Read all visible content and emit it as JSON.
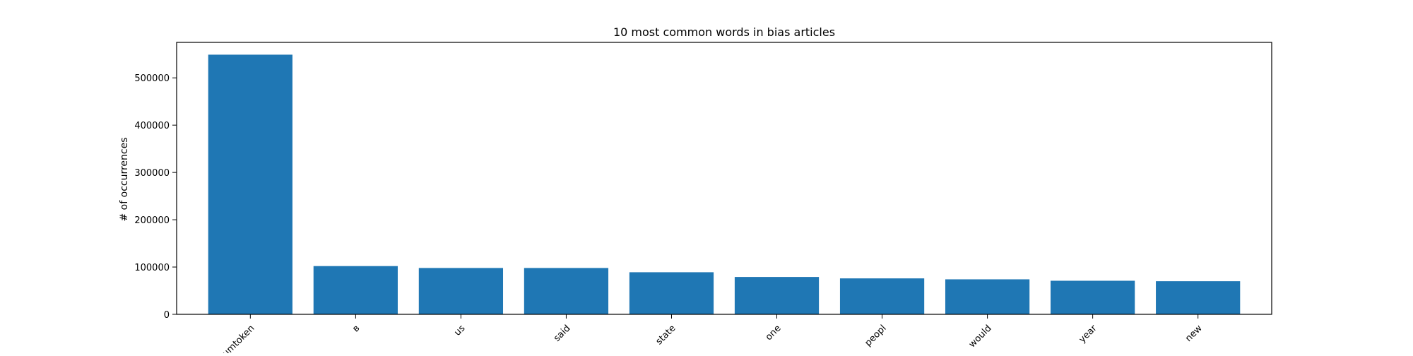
{
  "chart_data": {
    "type": "bar",
    "title": "10 most common words in bias articles",
    "xlabel": "",
    "ylabel": "# of occurrences",
    "categories": [
      "numtoken",
      "в",
      "us",
      "said",
      "state",
      "one",
      "peopl",
      "would",
      "year",
      "new"
    ],
    "values": [
      549000,
      102000,
      98000,
      98000,
      89000,
      79000,
      76000,
      74000,
      71000,
      70000
    ],
    "ylim": [
      0,
      575000
    ],
    "yticks": [
      0,
      100000,
      200000,
      300000,
      400000,
      500000
    ],
    "ytick_labels": [
      "0",
      "100000",
      "200000",
      "300000",
      "400000",
      "500000"
    ],
    "grid": false,
    "bar_color": "#1f77b4"
  }
}
